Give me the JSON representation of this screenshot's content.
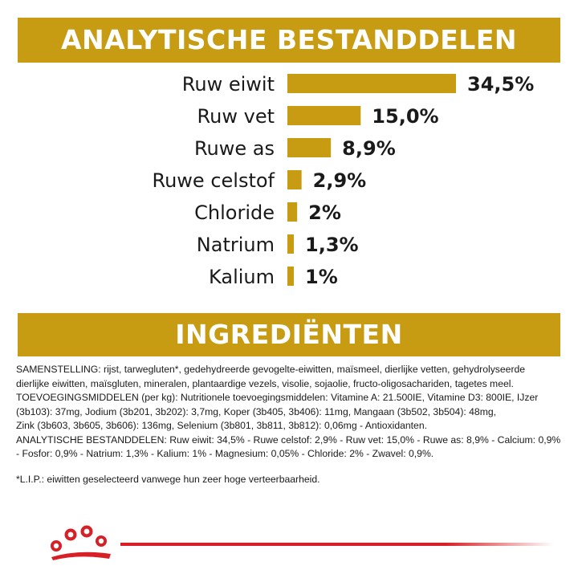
{
  "colors": {
    "accent": "#c79c12",
    "brand_red": "#d81f26"
  },
  "header": {
    "title": "ANALYTISCHE BESTANDDELEN"
  },
  "chart_data": {
    "type": "bar",
    "orientation": "horizontal",
    "title": "ANALYTISCHE BESTANDDELEN",
    "categories": [
      "Ruw eiwit",
      "Ruw vet",
      "Ruwe as",
      "Ruwe celstof",
      "Chloride",
      "Natrium",
      "Kalium"
    ],
    "values": [
      34.5,
      15.0,
      8.9,
      2.9,
      2,
      1.3,
      1
    ],
    "value_labels": [
      "34,5%",
      "15,0%",
      "8,9%",
      "2,9%",
      "2%",
      "1,3%",
      "1%"
    ],
    "xlabel": "",
    "ylabel": "",
    "grid": false
  },
  "ingredients": {
    "title": "INGREDIËNTEN",
    "lines": [
      "SAMENSTELLING: rijst, tarwegluten*, gedehydreerde gevogelte-eiwitten, maïsmeel, dierlijke vetten, gehydrolyseerde",
      "dierlijke eiwitten, maïsgluten, mineralen, plantaardige vezels, visolie, sojaolie, fructo-oligosachariden, tagetes meel.",
      "TOEVOEGINGSMIDDELEN (per kg): Nutritionele toevoegingsmiddelen: Vitamine A: 21.500IE, Vitamine D3: 800IE, IJzer",
      "(3b103): 37mg, Jodium (3b201, 3b202): 3,7mg, Koper (3b405, 3b406): 11mg, Mangaan (3b502, 3b504): 48mg,",
      "Zink (3b603, 3b605, 3b606): 136mg, Selenium (3b801, 3b811, 3b812): 0,06mg - Antioxidanten.",
      "ANALYTISCHE BESTANDDELEN: Ruw eiwit: 34,5% - Ruwe celstof: 2,9% - Ruw vet: 15,0% - Ruwe as: 8,9% - Calcium: 0,9%",
      "- Fosfor: 0,9% - Natrium: 1,3% - Kalium: 1% - Magnesium: 0,05% - Chloride: 2% - Zwavel: 0,9%."
    ],
    "footnote": "*L.I.P.: eiwitten geselecteerd vanwege hun zeer hoge verteerbaarheid."
  },
  "logo": {
    "icon": "royal-canin-crown-icon"
  }
}
